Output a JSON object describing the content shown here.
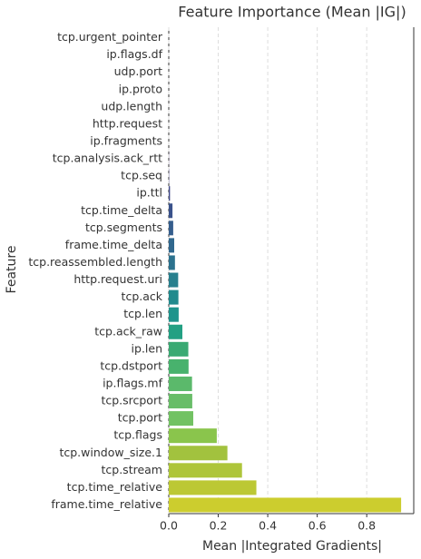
{
  "chart_data": {
    "type": "barh",
    "title": "Feature Importance (Mean |IG|)",
    "xlabel": "Mean |Integrated Gradients|",
    "ylabel": "Feature",
    "categories": [
      "tcp.urgent_pointer",
      "ip.flags.df",
      "udp.port",
      "ip.proto",
      "udp.length",
      "http.request",
      "ip.fragments",
      "tcp.analysis.ack_rtt",
      "tcp.seq",
      "ip.ttl",
      "tcp.time_delta",
      "tcp.segments",
      "frame.time_delta",
      "tcp.reassembled.length",
      "http.request.uri",
      "tcp.ack",
      "tcp.len",
      "tcp.ack_raw",
      "ip.len",
      "tcp.dstport",
      "ip.flags.mf",
      "tcp.srcport",
      "tcp.port",
      "tcp.flags",
      "tcp.window_size.1",
      "tcp.stream",
      "tcp.time_relative",
      "frame.time_relative"
    ],
    "values": [
      0,
      0,
      0,
      0,
      0,
      0,
      0,
      0.0005,
      0.001,
      0.005,
      0.015,
      0.018,
      0.022,
      0.025,
      0.038,
      0.039,
      0.04,
      0.055,
      0.079,
      0.08,
      0.094,
      0.095,
      0.099,
      0.194,
      0.237,
      0.296,
      0.354,
      0.939
    ],
    "colors": [
      "#440154",
      "#46085c",
      "#471063",
      "#481769",
      "#481d6f",
      "#482475",
      "#472a7a",
      "#46307e",
      "#433d84",
      "#3f4889",
      "#3a528b",
      "#355e8d",
      "#31688e",
      "#2c728e",
      "#28808e",
      "#218a8d",
      "#1f948c",
      "#23a083",
      "#3aaa73",
      "#48b26d",
      "#5bb96b",
      "#68bd68",
      "#72c263",
      "#8ac54c",
      "#a2c23e",
      "#aec53a",
      "#bcc834",
      "#cccd2e"
    ],
    "xlim": [
      0,
      0.99
    ],
    "xticks": [
      {
        "value": 0,
        "label": "0.0"
      },
      0.2,
      0.4,
      0.6,
      0.8
    ],
    "grid": true
  }
}
